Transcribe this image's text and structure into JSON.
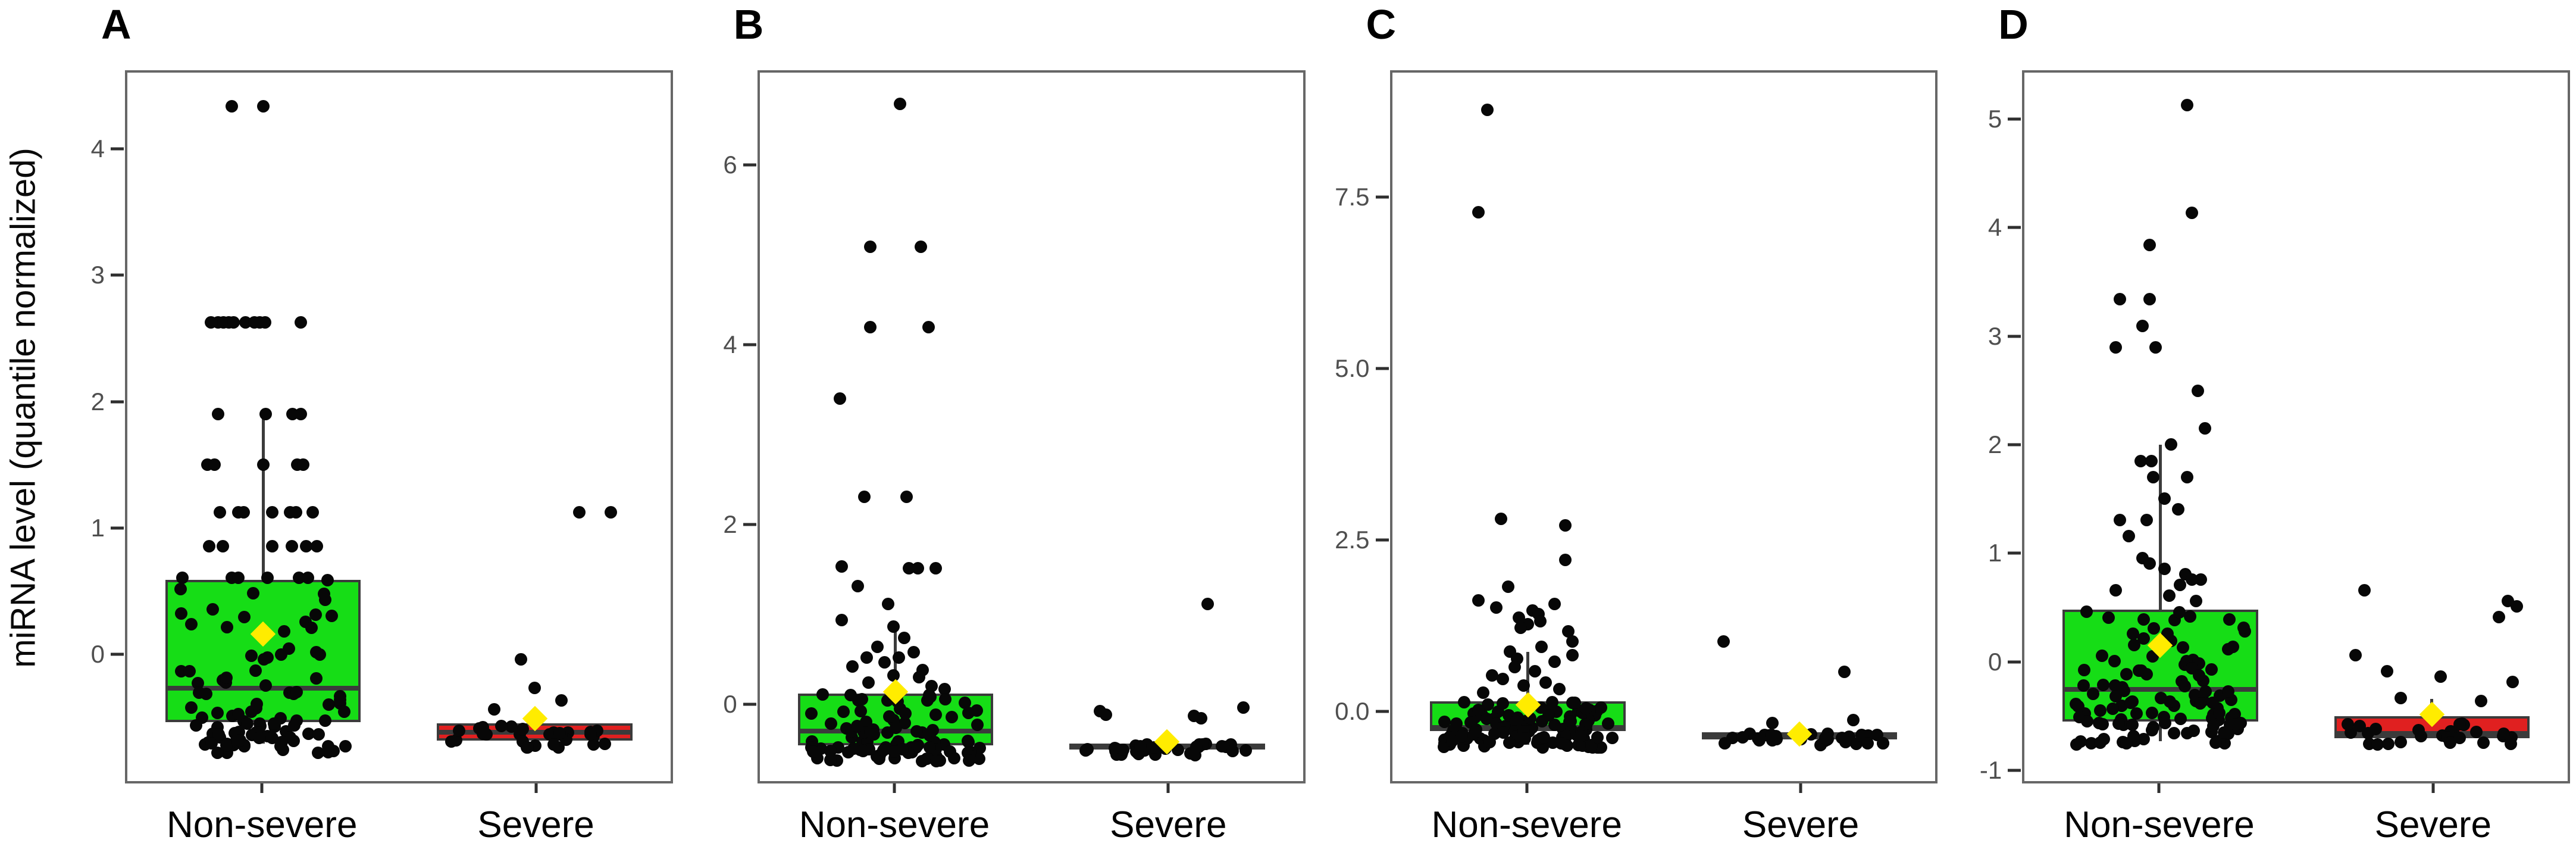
{
  "figure": {
    "y_axis_title": "miRNA level (quantile normalized)",
    "style": {
      "nonsevere_fill": "#16DD16",
      "severe_fill": "#E02020",
      "box_stroke": "#3b3b3b",
      "point_color": "#070707",
      "mean_fill": "#FFEC00",
      "frame_color": "#676767",
      "tick_text_color": "#4f4f4f"
    }
  },
  "chart_data": [
    {
      "type": "box",
      "panel_label": "A",
      "categories": [
        "Non-severe",
        "Severe"
      ],
      "ylim": [
        -1.02,
        4.62
      ],
      "yticks": [
        {
          "label": "0",
          "value": 0
        },
        {
          "label": "1",
          "value": 1
        },
        {
          "label": "2",
          "value": 2
        },
        {
          "label": "3",
          "value": 3
        },
        {
          "label": "4",
          "value": 4
        }
      ],
      "groups": [
        {
          "name": "Non-severe",
          "fill": "#16DD16",
          "box": {
            "q1": -0.55,
            "median": -0.28,
            "q3": 0.58,
            "whisker_low": -0.72,
            "whisker_high": 1.9,
            "mean": 0.15
          },
          "outlier_points": [
            [
              -0.35,
              4.35
            ],
            [
              0.0,
              4.35
            ],
            [
              -0.58,
              2.63
            ],
            [
              -0.5,
              2.63
            ],
            [
              -0.44,
              2.63
            ],
            [
              -0.38,
              2.63
            ],
            [
              -0.33,
              2.63
            ],
            [
              -0.2,
              2.63
            ],
            [
              -0.1,
              2.63
            ],
            [
              -0.04,
              2.63
            ],
            [
              0.02,
              2.63
            ],
            [
              0.42,
              2.63
            ],
            [
              -0.5,
              1.9
            ],
            [
              0.03,
              1.9
            ],
            [
              0.33,
              1.9
            ],
            [
              0.42,
              1.9
            ],
            [
              -0.62,
              1.5
            ],
            [
              -0.54,
              1.5
            ],
            [
              0.0,
              1.5
            ],
            [
              0.38,
              1.5
            ],
            [
              0.45,
              1.5
            ],
            [
              -0.48,
              1.12
            ],
            [
              -0.28,
              1.12
            ],
            [
              -0.22,
              1.12
            ],
            [
              0.1,
              1.12
            ],
            [
              0.3,
              1.12
            ],
            [
              0.37,
              1.12
            ],
            [
              0.55,
              1.12
            ],
            [
              -0.6,
              0.85
            ],
            [
              -0.45,
              0.85
            ],
            [
              0.1,
              0.85
            ],
            [
              0.32,
              0.85
            ],
            [
              0.48,
              0.85
            ],
            [
              0.6,
              0.85
            ],
            [
              -0.9,
              0.6
            ],
            [
              -0.35,
              0.6
            ],
            [
              -0.28,
              0.6
            ],
            [
              0.05,
              0.6
            ],
            [
              0.4,
              0.6
            ],
            [
              0.5,
              0.6
            ],
            [
              0.72,
              0.58
            ]
          ],
          "point_clusters": [
            {
              "n": 30,
              "ymin": -0.28,
              "ymax": 0.55,
              "seed": 11
            },
            {
              "n": 22,
              "ymin": -0.55,
              "ymax": -0.3,
              "seed": 12
            },
            {
              "n": 48,
              "ymin": -0.8,
              "ymax": -0.56,
              "seed": 13
            }
          ]
        },
        {
          "name": "Severe",
          "fill": "#E02020",
          "box": {
            "q1": -0.7,
            "median": -0.63,
            "q3": -0.56,
            "whisker_low": null,
            "whisker_high": null,
            "mean": -0.52
          },
          "outlier_points": [
            [
              0.5,
              1.12
            ],
            [
              0.85,
              1.12
            ],
            [
              -0.15,
              -0.05
            ],
            [
              0.0,
              -0.28
            ],
            [
              0.3,
              -0.38
            ],
            [
              -0.45,
              -0.45
            ]
          ],
          "point_clusters": [
            {
              "n": 30,
              "ymin": -0.76,
              "ymax": -0.58,
              "seed": 14
            }
          ]
        }
      ]
    },
    {
      "type": "box",
      "panel_label": "B",
      "categories": [
        "Non-severe",
        "Severe"
      ],
      "ylim": [
        -0.88,
        7.05
      ],
      "yticks": [
        {
          "label": "0",
          "value": 0
        },
        {
          "label": "2",
          "value": 2
        },
        {
          "label": "4",
          "value": 4
        },
        {
          "label": "6",
          "value": 6
        }
      ],
      "groups": [
        {
          "name": "Non-severe",
          "fill": "#16DD16",
          "box": {
            "q1": -0.48,
            "median": -0.32,
            "q3": 0.1,
            "whisker_low": -0.62,
            "whisker_high": 0.85,
            "mean": 0.12
          },
          "outlier_points": [
            [
              0.05,
              6.7
            ],
            [
              -0.28,
              5.1
            ],
            [
              0.28,
              5.1
            ],
            [
              -0.28,
              4.2
            ],
            [
              0.37,
              4.2
            ],
            [
              -0.62,
              3.4
            ],
            [
              -0.35,
              2.3
            ],
            [
              0.12,
              2.3
            ],
            [
              -0.6,
              1.52
            ],
            [
              0.15,
              1.5
            ],
            [
              0.25,
              1.5
            ],
            [
              0.45,
              1.5
            ],
            [
              -0.42,
              1.3
            ],
            [
              -0.08,
              1.1
            ],
            [
              -0.6,
              0.92
            ],
            [
              -0.02,
              0.85
            ],
            [
              0.1,
              0.72
            ],
            [
              -0.2,
              0.62
            ],
            [
              0.2,
              0.56
            ],
            [
              -0.32,
              0.5
            ],
            [
              0.04,
              0.5
            ],
            [
              -0.12,
              0.45
            ],
            [
              -0.48,
              0.4
            ],
            [
              0.3,
              0.36
            ],
            [
              -0.02,
              0.3
            ],
            [
              0.26,
              0.28
            ],
            [
              -0.3,
              0.22
            ],
            [
              0.4,
              0.18
            ],
            [
              0.55,
              0.15
            ]
          ],
          "point_clusters": [
            {
              "n": 12,
              "ymin": -0.05,
              "ymax": 0.1,
              "seed": 21
            },
            {
              "n": 40,
              "ymin": -0.48,
              "ymax": -0.06,
              "seed": 22
            },
            {
              "n": 42,
              "ymin": -0.66,
              "ymax": -0.49,
              "seed": 23
            }
          ]
        },
        {
          "name": "Severe",
          "fill": "#E02020",
          "box": {
            "q1": -0.53,
            "median": -0.5,
            "q3": -0.46,
            "whisker_low": null,
            "whisker_high": null,
            "mean": -0.44
          },
          "outlier_points": [
            [
              0.45,
              1.1
            ],
            [
              -0.75,
              -0.1
            ],
            [
              -0.68,
              -0.14
            ],
            [
              0.3,
              -0.15
            ],
            [
              0.38,
              -0.18
            ],
            [
              0.85,
              -0.06
            ]
          ],
          "point_clusters": [
            {
              "n": 34,
              "ymin": -0.6,
              "ymax": -0.46,
              "seed": 24
            }
          ]
        }
      ]
    },
    {
      "type": "box",
      "panel_label": "C",
      "categories": [
        "Non-severe",
        "Severe"
      ],
      "ylim": [
        -1.05,
        9.35
      ],
      "yticks": [
        {
          "label": "0.0",
          "value": 0
        },
        {
          "label": "2.5",
          "value": 2.5
        },
        {
          "label": "5.0",
          "value": 5
        },
        {
          "label": "7.5",
          "value": 7.5
        }
      ],
      "groups": [
        {
          "name": "Non-severe",
          "fill": "#16DD16",
          "box": {
            "q1": -0.32,
            "median": -0.26,
            "q3": 0.12,
            "whisker_low": -0.52,
            "whisker_high": 0.85,
            "mean": 0.07
          },
          "outlier_points": [
            [
              -0.45,
              8.8
            ],
            [
              -0.55,
              7.3
            ],
            [
              -0.3,
              2.8
            ],
            [
              0.42,
              2.7
            ],
            [
              0.42,
              2.2
            ],
            [
              -0.22,
              1.8
            ],
            [
              -0.55,
              1.6
            ],
            [
              0.3,
              1.55
            ],
            [
              -0.35,
              1.5
            ],
            [
              0.05,
              1.45
            ],
            [
              0.12,
              1.4
            ],
            [
              -0.1,
              1.35
            ],
            [
              0.14,
              1.3
            ],
            [
              0.0,
              1.25
            ],
            [
              -0.08,
              1.2
            ],
            [
              0.45,
              1.15
            ],
            [
              0.5,
              1.0
            ],
            [
              0.15,
              0.92
            ],
            [
              -0.2,
              0.85
            ],
            [
              0.5,
              0.8
            ],
            [
              -0.12,
              0.75
            ],
            [
              0.3,
              0.7
            ],
            [
              -0.15,
              0.62
            ],
            [
              0.08,
              0.56
            ],
            [
              -0.4,
              0.5
            ],
            [
              -0.28,
              0.45
            ],
            [
              0.2,
              0.4
            ],
            [
              -0.05,
              0.35
            ],
            [
              0.35,
              0.3
            ],
            [
              -0.5,
              0.25
            ]
          ],
          "point_clusters": [
            {
              "n": 55,
              "ymin": -0.3,
              "ymax": 0.12,
              "seed": 31
            },
            {
              "n": 60,
              "ymin": -0.56,
              "ymax": -0.31,
              "seed": 32
            }
          ]
        },
        {
          "name": "Severe",
          "fill": "#E02020",
          "box": {
            "q1": -0.44,
            "median": -0.38,
            "q3": -0.33,
            "whisker_low": null,
            "whisker_high": null,
            "mean": -0.36
          },
          "outlier_points": [
            [
              -0.85,
              1.0
            ],
            [
              0.5,
              0.55
            ],
            [
              0.6,
              -0.15
            ],
            [
              -0.3,
              -0.2
            ]
          ],
          "point_clusters": [
            {
              "n": 32,
              "ymin": -0.52,
              "ymax": -0.34,
              "seed": 33
            }
          ]
        }
      ]
    },
    {
      "type": "box",
      "panel_label": "D",
      "categories": [
        "Non-severe",
        "Severe"
      ],
      "ylim": [
        -1.12,
        5.45
      ],
      "yticks": [
        {
          "label": "-1",
          "value": -1
        },
        {
          "label": "0",
          "value": 0
        },
        {
          "label": "1",
          "value": 1
        },
        {
          "label": "2",
          "value": 2
        },
        {
          "label": "3",
          "value": 3
        },
        {
          "label": "4",
          "value": 4
        },
        {
          "label": "5",
          "value": 5
        }
      ],
      "groups": [
        {
          "name": "Non-severe",
          "fill": "#16DD16",
          "box": {
            "q1": -0.57,
            "median": -0.27,
            "q3": 0.47,
            "whisker_low": -0.75,
            "whisker_high": 2.0,
            "mean": 0.14
          },
          "outlier_points": [
            [
              0.3,
              5.15
            ],
            [
              0.35,
              4.15
            ],
            [
              -0.12,
              3.85
            ],
            [
              -0.45,
              3.35
            ],
            [
              -0.12,
              3.35
            ],
            [
              -0.2,
              3.1
            ],
            [
              -0.5,
              2.9
            ],
            [
              -0.05,
              2.9
            ],
            [
              0.42,
              2.5
            ],
            [
              0.5,
              2.15
            ],
            [
              0.12,
              2.0
            ],
            [
              -0.22,
              1.85
            ],
            [
              -0.1,
              1.85
            ],
            [
              -0.08,
              1.7
            ],
            [
              0.3,
              1.7
            ],
            [
              0.05,
              1.5
            ],
            [
              0.2,
              1.4
            ],
            [
              -0.45,
              1.3
            ],
            [
              -0.15,
              1.3
            ],
            [
              -0.35,
              1.15
            ],
            [
              -0.2,
              0.95
            ],
            [
              -0.12,
              0.9
            ],
            [
              0.05,
              0.85
            ],
            [
              0.28,
              0.8
            ],
            [
              0.35,
              0.75
            ],
            [
              0.45,
              0.75
            ],
            [
              0.22,
              0.7
            ],
            [
              -0.5,
              0.65
            ],
            [
              0.1,
              0.6
            ],
            [
              0.4,
              0.55
            ]
          ],
          "point_clusters": [
            {
              "n": 40,
              "ymin": -0.27,
              "ymax": 0.45,
              "seed": 41
            },
            {
              "n": 38,
              "ymin": -0.57,
              "ymax": -0.28,
              "seed": 42
            },
            {
              "n": 32,
              "ymin": -0.78,
              "ymax": -0.58,
              "seed": 43
            }
          ]
        },
        {
          "name": "Severe",
          "fill": "#E02020",
          "box": {
            "q1": -0.72,
            "median": -0.68,
            "q3": -0.52,
            "whisker_low": null,
            "whisker_high": -0.36,
            "mean": -0.5
          },
          "outlier_points": [
            [
              -0.75,
              0.65
            ],
            [
              0.85,
              0.55
            ],
            [
              0.95,
              0.5
            ],
            [
              0.75,
              0.4
            ],
            [
              -0.85,
              0.05
            ],
            [
              -0.5,
              -0.1
            ],
            [
              0.1,
              -0.15
            ],
            [
              0.9,
              -0.2
            ],
            [
              -0.35,
              -0.35
            ],
            [
              0.55,
              -0.38
            ]
          ],
          "point_clusters": [
            {
              "n": 28,
              "ymin": -0.78,
              "ymax": -0.56,
              "seed": 44
            }
          ]
        }
      ]
    }
  ]
}
